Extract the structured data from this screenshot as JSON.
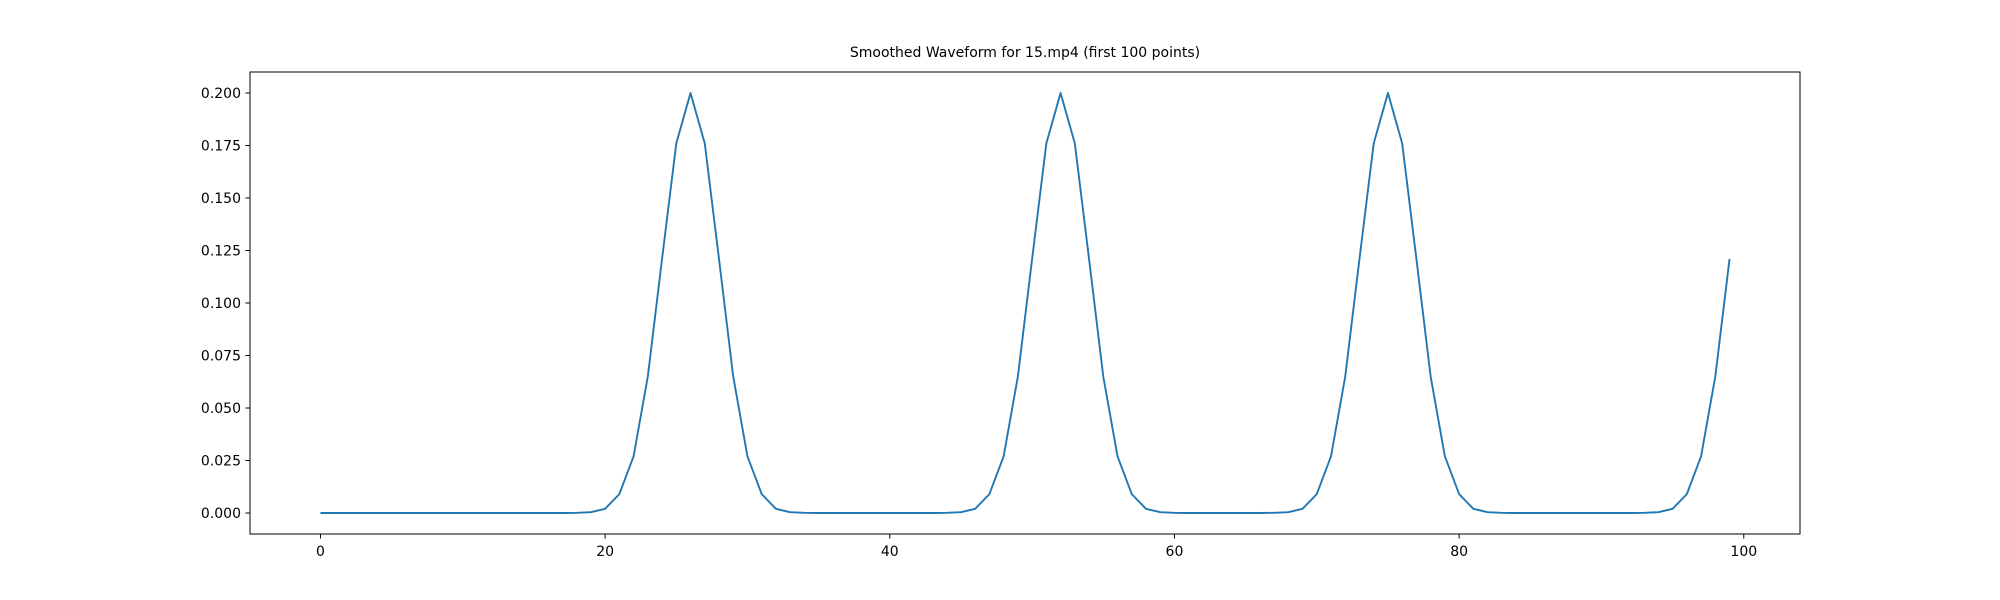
{
  "chart_data": {
    "type": "line",
    "title": "Smoothed Waveform for 15.mp4 (first 100 points)",
    "x": [
      0,
      1,
      2,
      3,
      4,
      5,
      6,
      7,
      8,
      9,
      10,
      11,
      12,
      13,
      14,
      15,
      16,
      17,
      18,
      19,
      20,
      21,
      22,
      23,
      24,
      25,
      26,
      27,
      28,
      29,
      30,
      31,
      32,
      33,
      34,
      35,
      36,
      37,
      38,
      39,
      40,
      41,
      42,
      43,
      44,
      45,
      46,
      47,
      48,
      49,
      50,
      51,
      52,
      53,
      54,
      55,
      56,
      57,
      58,
      59,
      60,
      61,
      62,
      63,
      64,
      65,
      66,
      67,
      68,
      69,
      70,
      71,
      72,
      73,
      74,
      75,
      76,
      77,
      78,
      79,
      80,
      81,
      82,
      83,
      84,
      85,
      86,
      87,
      88,
      89,
      90,
      91,
      92,
      93,
      94,
      95,
      96,
      97,
      98,
      99
    ],
    "values": [
      0,
      0,
      0,
      0,
      0,
      0,
      0,
      0,
      0,
      0,
      0,
      0,
      0,
      0,
      0,
      0,
      0,
      0,
      0.0001,
      0.0004,
      0.002,
      0.009,
      0.027,
      0.065,
      0.121,
      0.176,
      0.2,
      0.176,
      0.121,
      0.065,
      0.027,
      0.009,
      0.002,
      0.0004,
      0.0001,
      0,
      0,
      0,
      0,
      0,
      0,
      0,
      0,
      0,
      0.0001,
      0.0004,
      0.002,
      0.009,
      0.027,
      0.065,
      0.121,
      0.176,
      0.2,
      0.176,
      0.121,
      0.065,
      0.027,
      0.009,
      0.002,
      0.0004,
      0.0001,
      0,
      0,
      0,
      0,
      0,
      0,
      0.0001,
      0.0004,
      0.002,
      0.009,
      0.027,
      0.065,
      0.121,
      0.176,
      0.2,
      0.176,
      0.121,
      0.065,
      0.027,
      0.009,
      0.002,
      0.0004,
      0.0001,
      0,
      0,
      0,
      0,
      0,
      0,
      0,
      0,
      0,
      0.0001,
      0.0004,
      0.002,
      0.009,
      0.027,
      0.065,
      0.121
    ],
    "color": "#1f77b4",
    "xlim": [
      -4.95,
      103.95
    ],
    "xticks": [
      0,
      20,
      40,
      60,
      80,
      100
    ],
    "ylim": [
      -0.01,
      0.21
    ],
    "yticks": [
      {
        "value": 0,
        "label": "0.000"
      },
      0.025,
      {
        "value": 0.05,
        "label": "0.050"
      },
      0.075,
      {
        "value": 0.1,
        "label": "0.100"
      },
      0.125,
      {
        "value": 0.15,
        "label": "0.150"
      },
      0.175,
      {
        "value": 0.2,
        "label": "0.200"
      }
    ]
  }
}
